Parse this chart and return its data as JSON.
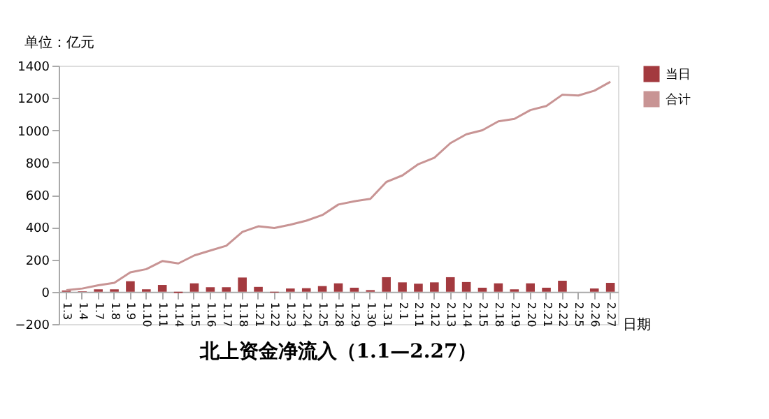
{
  "chart_data": {
    "type": "bar",
    "title": "北上资金净流入（1.1—2.27）",
    "ylabel": "单位：亿元",
    "xlabel": "日期",
    "categories": [
      "1.3",
      "1.4",
      "1.7",
      "1.8",
      "1.9",
      "1.10",
      "1.11",
      "1.14",
      "1.15",
      "1.16",
      "1.17",
      "1.18",
      "1.21",
      "1.22",
      "1.23",
      "1.24",
      "1.25",
      "1.28",
      "1.29",
      "1.30",
      "1.31",
      "2.1",
      "2.11",
      "2.12",
      "2.13",
      "2.14",
      "2.15",
      "2.18",
      "2.19",
      "2.20",
      "2.21",
      "2.22",
      "2.25",
      "2.26",
      "2.27"
    ],
    "series": [
      {
        "name": "当日",
        "color": "#a33a3f",
        "values": [
          8,
          3,
          15,
          15,
          65,
          15,
          42,
          -8,
          52,
          28,
          28,
          88,
          30,
          -5,
          20,
          22,
          35,
          52,
          25,
          10,
          90,
          58,
          50,
          58,
          90,
          60,
          25,
          52,
          15,
          52,
          25,
          68,
          0,
          20,
          55
        ]
      },
      {
        "name": "合计",
        "type": "line",
        "color": "#c89494",
        "values": [
          10,
          20,
          40,
          55,
          120,
          140,
          190,
          175,
          225,
          255,
          285,
          370,
          405,
          395,
          415,
          440,
          475,
          540,
          560,
          575,
          680,
          720,
          790,
          830,
          920,
          975,
          1000,
          1055,
          1070,
          1125,
          1150,
          1220,
          1215,
          1245,
          1300
        ]
      }
    ],
    "ylim": [
      -200,
      1400
    ],
    "yticks": [
      -200,
      0,
      200,
      400,
      600,
      800,
      1000,
      1200,
      1400
    ],
    "legend": "right"
  }
}
